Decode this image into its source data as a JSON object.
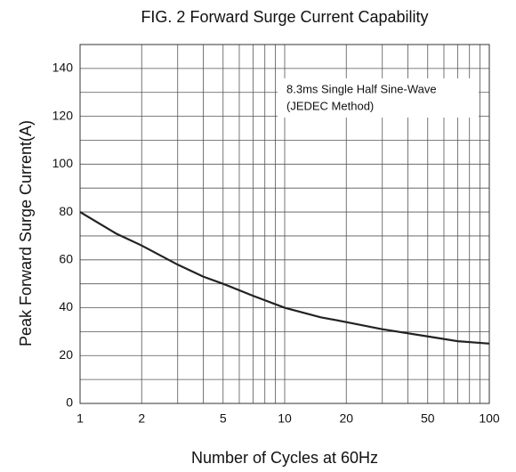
{
  "chart_data": {
    "type": "line",
    "title": "FIG. 2 Forward Surge Current Capability",
    "x_label": "Number of Cycles at 60Hz",
    "y_label": "Peak Forward Surge Current(A)",
    "annotation": [
      "8.3ms Single Half Sine-Wave",
      "(JEDEC Method)"
    ],
    "x_log": true,
    "xlim": [
      1,
      100
    ],
    "xticks": [
      1,
      2,
      5,
      10,
      20,
      50,
      100
    ],
    "x_minor_ticks": [
      3,
      4,
      6,
      7,
      8,
      9,
      30,
      40,
      60,
      70,
      80,
      90
    ],
    "ylim": [
      0,
      150
    ],
    "yticks": [
      0,
      20,
      40,
      60,
      80,
      100,
      120,
      140
    ],
    "y_minor_ticks": [
      10,
      30,
      50,
      70,
      90,
      110,
      130
    ],
    "grid": true,
    "series": [
      {
        "color": "#222222",
        "x": [
          1,
          1.5,
          2,
          3,
          4,
          5,
          7,
          10,
          15,
          20,
          30,
          50,
          70,
          100
        ],
        "values": [
          80,
          71,
          66,
          58,
          53,
          50,
          45,
          40,
          36,
          34,
          31,
          28,
          26,
          25
        ]
      }
    ]
  }
}
